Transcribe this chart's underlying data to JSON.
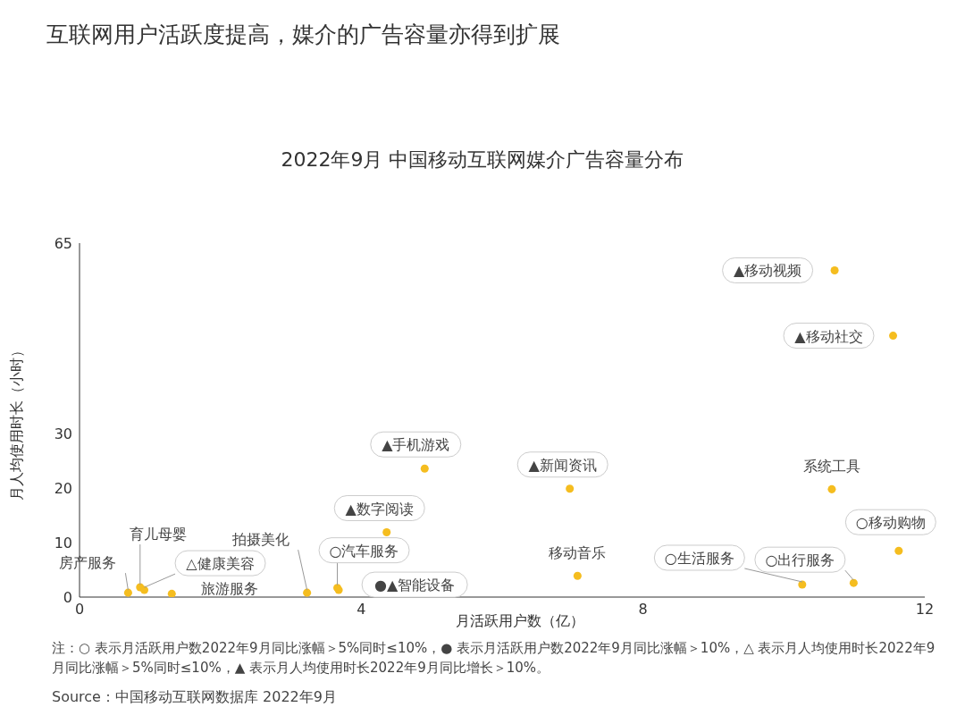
{
  "chart_data": {
    "type": "scatter",
    "title": "互联网用户活跃度提高，媒介的广告容量亦得到扩展",
    "subtitle": "2022年9月 中国移动互联网媒介广告容量分布",
    "xlabel": "月活跃用户数（亿）",
    "ylabel": "月人均使用时长（小时）",
    "x": [
      0.69,
      0.86,
      0.92,
      1.31,
      3.23,
      3.66,
      3.68,
      4.9,
      4.36,
      6.96,
      7.07,
      10.68,
      10.72,
      11.55,
      11.63,
      10.26,
      10.99
    ],
    "series": [
      {
        "color": "#f5bd1f",
        "values": [
          0.8,
          1.8,
          1.3,
          0.6,
          0.8,
          1.7,
          1.3,
          23.6,
          11.9,
          19.9,
          3.9,
          19.8,
          60,
          48,
          8.5,
          2.3,
          2.6
        ]
      }
    ],
    "xlim": [
      0,
      12
    ],
    "xticks": [
      0,
      4,
      8,
      12
    ],
    "ylim": [
      0,
      65
    ],
    "yticks": [
      0,
      10,
      20,
      30,
      65
    ],
    "grid": false,
    "legend": false,
    "marker": "circle",
    "annotations": [
      {
        "text": "房产服务",
        "x": 0.69,
        "y": 0.8
      },
      {
        "text": "育儿母婴",
        "x": 0.86,
        "y": 1.8
      },
      {
        "text": "△健康美容",
        "x": 0.92,
        "y": 1.3
      },
      {
        "text": "旅游服务",
        "x": 1.31,
        "y": 0.6
      },
      {
        "text": "拍摄美化",
        "x": 3.23,
        "y": 0.8
      },
      {
        "text": "○汽车服务",
        "x": 3.66,
        "y": 1.7
      },
      {
        "text": "●▲智能设备",
        "x": 3.68,
        "y": 1.3
      },
      {
        "text": "▲手机游戏",
        "x": 4.9,
        "y": 23.6
      },
      {
        "text": "▲数字阅读",
        "x": 4.36,
        "y": 11.9
      },
      {
        "text": "▲新闻资讯",
        "x": 6.96,
        "y": 19.9
      },
      {
        "text": "移动音乐",
        "x": 7.07,
        "y": 3.9
      },
      {
        "text": "系统工具",
        "x": 10.68,
        "y": 19.8
      },
      {
        "text": "▲移动视频",
        "x": 10.72,
        "y": 60
      },
      {
        "text": "▲移动社交",
        "x": 11.55,
        "y": 48
      },
      {
        "text": "○移动购物",
        "x": 11.63,
        "y": 8.5
      },
      {
        "text": "○生活服务",
        "x": 10.26,
        "y": 2.3
      },
      {
        "text": "○出行服务",
        "x": 10.99,
        "y": 2.6
      },
      "注：○ 表示月活跃用户数2022年9月同比涨幅＞5%同时≤10%，● 表示月活跃用户数2022年9月同比涨幅＞10%，△ 表示月人均使用时长2022年9月同比涨幅＞5%同时≤10%，▲ 表示月人均使用时长2022年9月同比增长＞10%。",
      "Source：中国移动互联网数据库 2022年9月"
    ]
  }
}
